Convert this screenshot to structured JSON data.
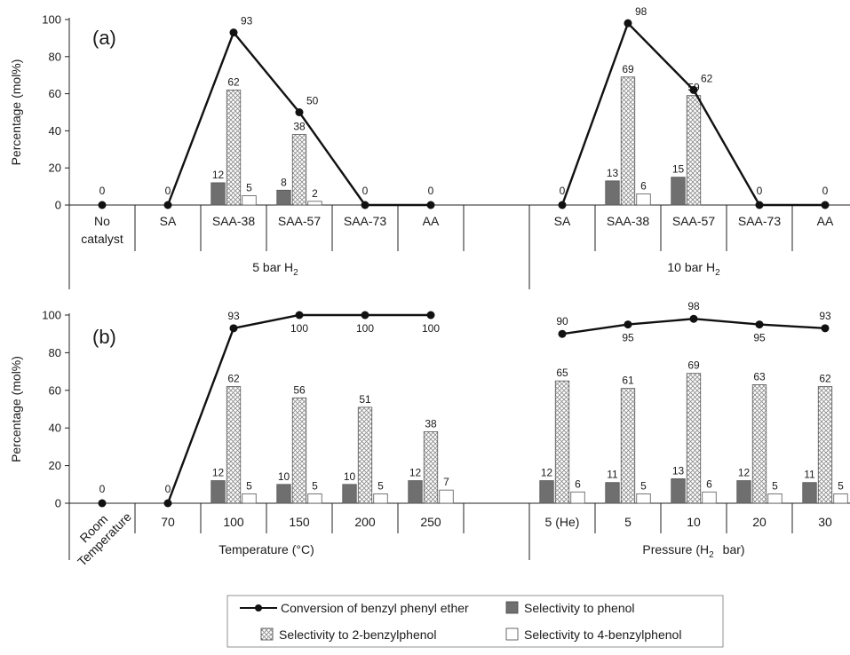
{
  "chart_data": [
    {
      "type": "bar",
      "panel_label": "(a)",
      "ylabel": "Percentage (mol%)",
      "ylim": [
        0,
        100
      ],
      "yticks": [
        0,
        20,
        40,
        60,
        80,
        100
      ],
      "groups": [
        {
          "label": "5 bar H",
          "sub": "2",
          "categories": [
            "No catalyst",
            "SA",
            "SAA-38",
            "SAA-57",
            "SAA-73",
            "AA"
          ]
        },
        {
          "label": "10 bar H",
          "sub": "2",
          "categories": [
            "SA",
            "SAA-38",
            "SAA-57",
            "SAA-73",
            "AA"
          ]
        }
      ],
      "slots": [
        {
          "category": "No catalyst",
          "conversion": 0,
          "phenol": null,
          "p2": null,
          "p4": null
        },
        {
          "category": "SA",
          "conversion": 0,
          "phenol": null,
          "p2": null,
          "p4": null
        },
        {
          "category": "SAA-38",
          "conversion": 93,
          "phenol": 12,
          "p2": 62,
          "p4": 5
        },
        {
          "category": "SAA-57",
          "conversion": 50,
          "phenol": 8,
          "p2": 38,
          "p4": 2
        },
        {
          "category": "SAA-73",
          "conversion": 0,
          "phenol": null,
          "p2": null,
          "p4": null
        },
        {
          "category": "AA",
          "conversion": 0,
          "phenol": null,
          "p2": null,
          "p4": null
        },
        {
          "category": "",
          "conversion": null,
          "phenol": null,
          "p2": null,
          "p4": null
        },
        {
          "category": "SA",
          "conversion": 0,
          "phenol": null,
          "p2": null,
          "p4": null
        },
        {
          "category": "SAA-38",
          "conversion": 98,
          "phenol": 13,
          "p2": 69,
          "p4": 6
        },
        {
          "category": "SAA-57",
          "conversion": 62,
          "phenol": 15,
          "p2": 59,
          "p4": null
        },
        {
          "category": "SAA-73",
          "conversion": 0,
          "phenol": null,
          "p2": null,
          "p4": null
        },
        {
          "category": "AA",
          "conversion": 0,
          "phenol": null,
          "p2": null,
          "p4": null
        }
      ]
    },
    {
      "type": "bar",
      "panel_label": "(b)",
      "ylabel": "Percentage (mol%)",
      "ylim": [
        0,
        100
      ],
      "yticks": [
        0,
        20,
        40,
        60,
        80,
        100
      ],
      "groups": [
        {
          "label": "Temperature (°C)",
          "sub": "",
          "categories": [
            "Room Temperature",
            "70",
            "100",
            "150",
            "200",
            "250"
          ]
        },
        {
          "label": "Pressure (H",
          "sub": "2",
          "label_after": "bar)",
          "categories": [
            "5 (He)",
            "5",
            "10",
            "20",
            "30"
          ]
        }
      ],
      "slots": [
        {
          "category": "Room Temperature",
          "conversion": 0,
          "phenol": null,
          "p2": null,
          "p4": null
        },
        {
          "category": "70",
          "conversion": 0,
          "phenol": null,
          "p2": null,
          "p4": null
        },
        {
          "category": "100",
          "conversion": 93,
          "phenol": 12,
          "p2": 62,
          "p4": 5
        },
        {
          "category": "150",
          "conversion": 100,
          "phenol": 10,
          "p2": 56,
          "p4": 5
        },
        {
          "category": "200",
          "conversion": 100,
          "phenol": 10,
          "p2": 51,
          "p4": 5
        },
        {
          "category": "250",
          "conversion": 100,
          "phenol": 12,
          "p2": 38,
          "p4": 7
        },
        {
          "category": "",
          "conversion": null,
          "phenol": null,
          "p2": null,
          "p4": null
        },
        {
          "category": "5 (He)",
          "conversion": 90,
          "phenol": 12,
          "p2": 65,
          "p4": 6
        },
        {
          "category": "5",
          "conversion": 95,
          "phenol": 11,
          "p2": 61,
          "p4": 5
        },
        {
          "category": "10",
          "conversion": 98,
          "phenol": 13,
          "p2": 69,
          "p4": 6
        },
        {
          "category": "20",
          "conversion": 95,
          "phenol": 12,
          "p2": 63,
          "p4": 5
        },
        {
          "category": "30",
          "conversion": 93,
          "phenol": 11,
          "p2": 62,
          "p4": 5
        }
      ]
    }
  ],
  "legend": [
    {
      "key": "conversion",
      "label": "Conversion of benzyl phenyl ether",
      "marker": "line-dot"
    },
    {
      "key": "phenol",
      "label": "Selectivity to phenol",
      "marker": "dark-bar"
    },
    {
      "key": "p2",
      "label": "Selectivity to 2-benzylphenol",
      "marker": "hatched-bar"
    },
    {
      "key": "p4",
      "label": "Selectivity to 4-benzylphenol",
      "marker": "white-bar"
    }
  ],
  "colors": {
    "phenol": "#6f6f6f",
    "p2_hatch": "#8a8a8a",
    "line": "#111111",
    "axis": "#222222"
  }
}
